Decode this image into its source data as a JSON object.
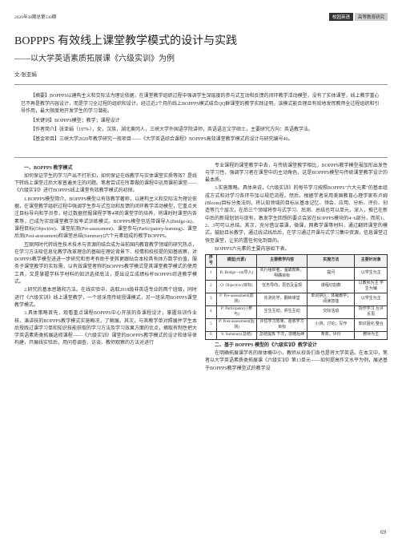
{
  "header": {
    "issue": "2020年38期总第530期",
    "badge1": "校园英语",
    "badge2": "高等教育研究",
    "eng": "ENGLISH ON CAMPUS"
  },
  "title": "BOPPPS 有效线上课堂教学模式的设计与实践",
  "subtitle": "——以大学英语素质拓展课《六级实训》为例",
  "author_prefix": "文/",
  "author": "张亚娟",
  "abstract": {
    "p1": "【摘要】BOPPPS以建构主义和交际法为理论依据，在课堂教学组织过程中强调学生深层度的参与式互动和反馈的闭环教学活动模型，没有了实体课堂，线上教学重心已不再是教学内容设计，而是学习全过程的组织和设计。经过近2个月的线上BOPPPS模式结合QQ群课堂的教学实践证明，该模式能合理且有效地发挥教师全过程组织和引导作用，最大限度地开发学生的学习潜能。",
    "p2": "【关键词】BOPPPS模型；教学；课程设计",
    "p3": "【作者简介】张亚娟（1979-），女，汉族，湖北黄冈人，三峡大学外国语学院讲师，英语语言文学硕士，主要研究方向：英语教学法。",
    "p4": "【基金项目】三峡大学2020年教学研究一般项目——《大学英语综合课程》BOPPPS高效课堂教学模式的设计与研究编号40。"
  },
  "left": {
    "h1": "一、BOPPPS 教学模式",
    "p1": "如何保证学生的学习产出不打折扣，如何保证在线教学与实体课堂实质等效？是线下转线上课堂过后大家普遍关注的问题。笔者尝试在所靠做的课程中运用课前课堂——《六级实训》进行BOPPPS线上课堂有效教学模式的初探。",
    "p2": "1.BOPPPS模型简介。BOPPPS模型以有效教学著称，以建构主义和交际法为理论依据，在课堂教学组织过程中强调学生参与式互动和反馈的闭环教学活动模型，它重点关注目标导向和学员参，经过数据挖掘课程学等4项的课堂学的培养，将课时时课堂内各素等，已成为实现课堂教学效率式训练模式。BOPPPS模型包括带课导入(Bridge-in)、课程目标(Objective)、课堂前测(Pre-assessment)、课堂参与(Participatory-learning)、课堂后测(Post-assessment)和课堂总结(Summary)六个元素组成的教学BOPPPS。",
    "p3": "互联网时代转线性技术技术与资源的结合成为当前国内教育教学领域的研究热点，在学习方法吸信息化教学改革理念的基础在理论背景下、校情和校校提的知基底察，对BOPPPS教学模型进进一步研究和思考有助于使其更跟贴合本校具有体方数学价值，服务于课堂教学的实际需，以有效课堂者称的BOPPPS教学模式是其课堂教学模式的使用工具，又是掌握学科学材料的知识选择底法，提出设立成绩标杆BOPPPS综进教学模式。",
    "p4": "2.研究的基本思路和方法。在线实验中，选取2018级非英语专业的两个班级，同时进行《六级实训》线上课堂教学，一个班采用传统授课模式，另一班采用BOPPPS课堂教学模式。",
    "p5": "3.具体策略首先，观看重点课程BOPPPS中心开放的各课程设计，掌握培训作业核，演讲技的BOPPPS教学模式实施概况，了解展。其次，与其教学单对照展并学生本后授践过课学习单和知识技能获取的学习方法及学习效果方面的优点，摘取有制性把大学英语素质类拓展选修课程——《六级实训》课堂的BOPPPS教学模式的设计和体导体构建，开展线实验后，用问卷调查、访谈、教师观察的方法对进行"
  },
  "right": {
    "p1": "专业课程的课堂教学中去，与传统课堂教学相比，BOPPPS教学模型虽加形出发性与学习性，强调学习者在课堂中的主动角色，这是BOPPPS模型与传统课堂教学设计的最本质。",
    "p2": "3.实施策略。具体来说，《六级实训》的每节学习按照BOPPPS\"六大元素\"的基本组成方式和对学习各环节加以规范流程。然后，根据学者采用美国教育心理学家布卢姆(Bloom)目标分类法则，将认知领域的目标从基本记忆、领会、应用、分析、评价、创造等几个层次，在后三个领域将参与式学习、后测、总结也可以单元，深入，推己在新中后的新规划划与现有。激发学生回想的要点会放在BOPPPS模块的4~6部分，而前1、2、3可可以总结。其次，充分借议慕课，微课，网教学课等材料，通过翻转课堂的模式，鼓励且长教学，通过线试线后后，在学习通过开课与式学习集中资源，信息课堂过快至课堂，让前的置任何化到目的。",
    "p3": "BOPPPS六元素的主要内容如下表。",
    "table": {
      "caption": "BOPPPS六元素的主要内容如下表",
      "headers": [
        "序号",
        "模型(元素)",
        "主要教学内容",
        "实施方法",
        "主要针对象"
      ],
      "rows": [
        [
          "1",
          "B: Bridge—in(导入)",
          "先行组织者，温故知新，明确目标",
          "提问",
          "以学生为主"
        ],
        [
          "2",
          "O: Objective (目标)",
          "任务导向，思仿及呈现",
          "课程切割数",
          "以教师为主\n学生为辅"
        ],
        [
          "3",
          "P: Pre-assessment(前测)",
          "先测先学，翻转课堂",
          "单词拼区：体裁教学；阅读技能",
          "以学生为主"
        ],
        [
          "4",
          "P: Participatory (参与)",
          "生生互动，师生互动",
          "交际活动",
          "协作学习\n互评反思"
        ],
        [
          "5",
          "P: Post-assessment(后测)",
          "评估学习效果，验收学习目标",
          "小测；讨论；写作",
          "知识固化\n整合"
        ],
        [
          "6",
          "S: Summary(总结)",
          "总结提炼\n下次，前瞻后续",
          "条陈，评价",
          "教师为主"
        ]
      ]
    },
    "h2": "二、基于 BOPPPS 模型的《六级实训》教学设计",
    "p4": "在明确拓展课学名的原体概中小，教师从校各们各也是将大学英语。在本文中，笔者以大学英语素质类拓展课《六级实训》第13单元——如何提高作文水平为例，展述基于BOPPPS教学模型式的教学设"
  },
  "page_num": "69"
}
